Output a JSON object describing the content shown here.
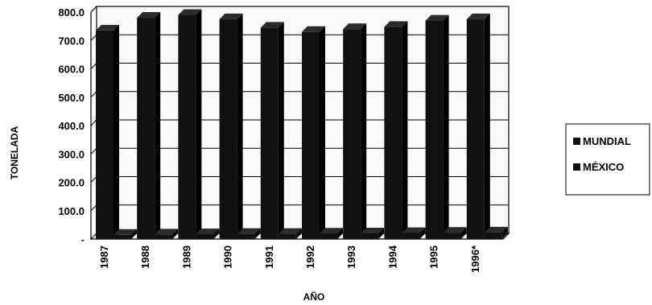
{
  "chart_data": {
    "type": "bar",
    "title": "",
    "xlabel": "AÑO",
    "ylabel": "TONELADA",
    "categories": [
      "1987",
      "1988",
      "1989",
      "1990",
      "1991",
      "1992",
      "1993",
      "1994",
      "1995",
      "1996*"
    ],
    "series": [
      {
        "name": "MUNDIAL",
        "values": [
          735,
          780,
          790,
          775,
          745,
          730,
          740,
          748,
          770,
          775
        ]
      },
      {
        "name": "MÉXICO",
        "values": [
          15,
          16,
          17,
          18,
          18,
          19,
          20,
          21,
          22,
          23
        ]
      }
    ],
    "ylim": [
      0,
      800
    ],
    "yticks": [
      "-",
      "100.0",
      "200.0",
      "300.0",
      "400.0",
      "500.0",
      "600.0",
      "700.0",
      "800.0"
    ],
    "grid": true,
    "legend_position": "right",
    "colors": {
      "bars": "#111111",
      "grid": "#000000",
      "background": "#ffffff"
    }
  }
}
